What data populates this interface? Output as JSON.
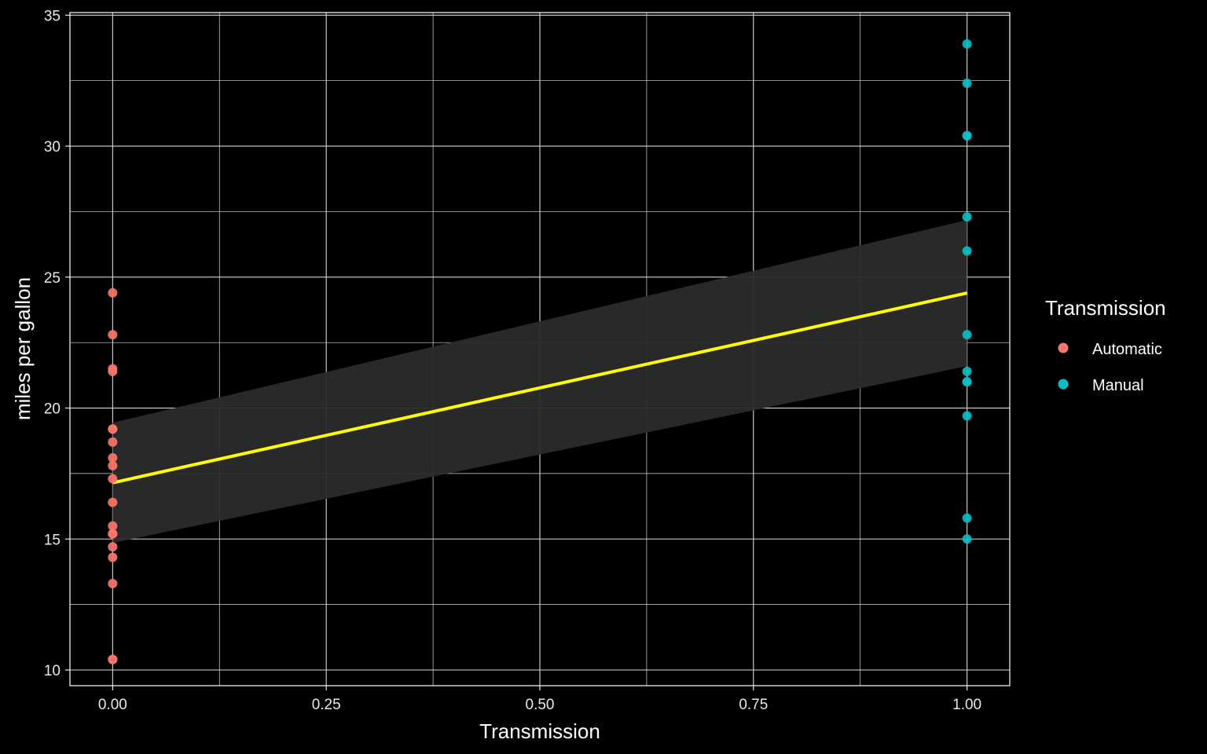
{
  "chart_data": {
    "type": "scatter",
    "xlabel": "Transmission",
    "ylabel": "miles per gallon",
    "xlim": [
      -0.05,
      1.05
    ],
    "ylim": [
      9.4,
      35.1
    ],
    "x_ticks": [
      0,
      0.25,
      0.5,
      0.75,
      1
    ],
    "x_tick_labels": [
      "0.00",
      "0.25",
      "0.50",
      "0.75",
      "1.00"
    ],
    "y_ticks": [
      10,
      15,
      20,
      25,
      30,
      35
    ],
    "y_tick_labels": [
      "10",
      "15",
      "20",
      "25",
      "30",
      "35"
    ],
    "grid": true,
    "legend": {
      "title": "Transmission",
      "position": "right",
      "entries": [
        "Automatic",
        "Manual"
      ]
    },
    "series": [
      {
        "name": "Automatic",
        "color": "#F8766D",
        "x": [
          0,
          0,
          0,
          0,
          0,
          0,
          0,
          0,
          0,
          0,
          0,
          0,
          0,
          0,
          0,
          0,
          0,
          0,
          0
        ],
        "y": [
          21.4,
          18.7,
          18.1,
          14.3,
          24.4,
          22.8,
          19.2,
          17.8,
          16.4,
          17.3,
          15.2,
          10.4,
          10.4,
          14.7,
          21.5,
          15.5,
          15.2,
          13.3,
          19.2
        ]
      },
      {
        "name": "Manual",
        "color": "#00BFC4",
        "x": [
          1,
          1,
          1,
          1,
          1,
          1,
          1,
          1,
          1,
          1,
          1,
          1,
          1
        ],
        "y": [
          21.0,
          21.0,
          22.8,
          32.4,
          30.4,
          33.9,
          27.3,
          26.0,
          30.4,
          15.8,
          19.7,
          15.0,
          21.4
        ]
      }
    ],
    "trend": {
      "type": "linear",
      "color": "#FFFF00",
      "x": [
        0,
        1
      ],
      "y": [
        17.147,
        24.392
      ],
      "ci_lower": [
        14.85,
        21.6
      ],
      "ci_upper": [
        19.44,
        27.18
      ],
      "ci_color": "#2B2B2B"
    }
  },
  "colors": {
    "background": "#000000",
    "grid": "#D9D9D9",
    "panel_border": "#FFFFFF"
  }
}
